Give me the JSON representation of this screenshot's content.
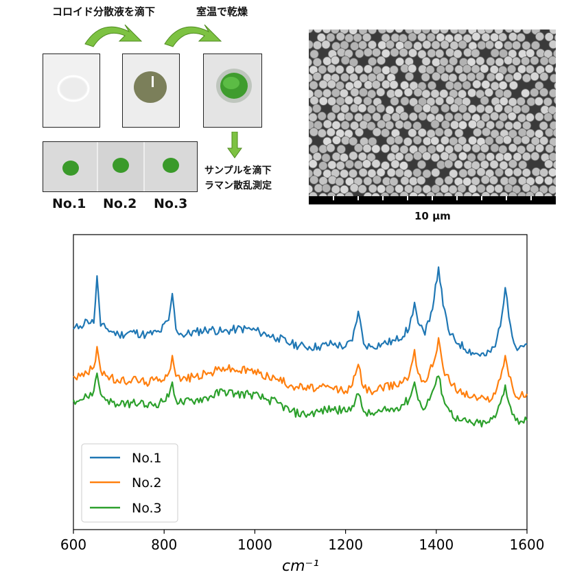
{
  "process": {
    "step1": "コロイド分散液を滴下",
    "step2": "室温で乾燥",
    "step3_line1": "サンプルを滴下",
    "step3_line2": "ラマン散乱測定"
  },
  "samples": [
    "No.1",
    "No.2",
    "No.3"
  ],
  "sem": {
    "scale_label": "10 μm"
  },
  "colors": {
    "arrow": "#7dc242",
    "no1": "#1f77b4",
    "no2": "#ff7f0e",
    "no3": "#2ca02c"
  },
  "chart_data": {
    "type": "line",
    "title": "",
    "xlabel": "cm⁻¹",
    "ylabel": "",
    "xlim": [
      600,
      1600
    ],
    "ylim": [
      0,
      1
    ],
    "xticks": [
      "600",
      "800",
      "1000",
      "1200",
      "1400",
      "1600"
    ],
    "legend": "lower-left",
    "series": [
      {
        "name": "No.1",
        "color": "#1f77b4",
        "x": [
          600,
          615,
          630,
          645,
          652,
          660,
          675,
          700,
          730,
          760,
          790,
          810,
          818,
          826,
          840,
          870,
          900,
          930,
          960,
          990,
          1010,
          1030,
          1050,
          1080,
          1110,
          1140,
          1170,
          1200,
          1215,
          1228,
          1240,
          1255,
          1280,
          1310,
          1340,
          1352,
          1360,
          1375,
          1395,
          1405,
          1415,
          1430,
          1450,
          1480,
          1510,
          1530,
          1545,
          1552,
          1560,
          1575,
          1600
        ],
        "y": [
          0.68,
          0.69,
          0.71,
          0.7,
          0.86,
          0.69,
          0.68,
          0.66,
          0.67,
          0.66,
          0.67,
          0.71,
          0.8,
          0.68,
          0.66,
          0.67,
          0.68,
          0.67,
          0.68,
          0.68,
          0.67,
          0.66,
          0.65,
          0.63,
          0.62,
          0.62,
          0.63,
          0.62,
          0.64,
          0.74,
          0.63,
          0.62,
          0.63,
          0.64,
          0.68,
          0.77,
          0.7,
          0.66,
          0.78,
          0.89,
          0.76,
          0.66,
          0.63,
          0.6,
          0.59,
          0.62,
          0.73,
          0.82,
          0.72,
          0.62,
          0.63
        ]
      },
      {
        "name": "No.2",
        "color": "#ff7f0e",
        "x": [
          600,
          615,
          630,
          645,
          652,
          660,
          675,
          700,
          730,
          760,
          790,
          810,
          818,
          826,
          840,
          870,
          900,
          930,
          960,
          990,
          1010,
          1030,
          1050,
          1080,
          1110,
          1140,
          1170,
          1200,
          1215,
          1228,
          1240,
          1255,
          1280,
          1310,
          1340,
          1352,
          1360,
          1375,
          1395,
          1405,
          1415,
          1430,
          1450,
          1480,
          1510,
          1530,
          1545,
          1552,
          1560,
          1575,
          1600
        ],
        "y": [
          0.52,
          0.52,
          0.53,
          0.55,
          0.62,
          0.54,
          0.52,
          0.5,
          0.51,
          0.5,
          0.51,
          0.53,
          0.59,
          0.52,
          0.51,
          0.52,
          0.53,
          0.55,
          0.54,
          0.54,
          0.53,
          0.52,
          0.51,
          0.49,
          0.48,
          0.48,
          0.48,
          0.47,
          0.49,
          0.56,
          0.48,
          0.47,
          0.48,
          0.49,
          0.52,
          0.61,
          0.53,
          0.5,
          0.57,
          0.65,
          0.55,
          0.5,
          0.47,
          0.45,
          0.44,
          0.46,
          0.54,
          0.59,
          0.52,
          0.45,
          0.46
        ]
      },
      {
        "name": "No.3",
        "color": "#2ca02c",
        "x": [
          600,
          615,
          630,
          645,
          652,
          660,
          675,
          700,
          730,
          760,
          790,
          810,
          818,
          826,
          840,
          870,
          900,
          930,
          960,
          990,
          1010,
          1030,
          1050,
          1080,
          1110,
          1140,
          1170,
          1200,
          1215,
          1228,
          1240,
          1255,
          1280,
          1310,
          1340,
          1352,
          1360,
          1375,
          1395,
          1405,
          1415,
          1430,
          1450,
          1480,
          1510,
          1530,
          1545,
          1552,
          1560,
          1575,
          1600
        ],
        "y": [
          0.44,
          0.44,
          0.45,
          0.47,
          0.53,
          0.46,
          0.44,
          0.42,
          0.43,
          0.42,
          0.43,
          0.45,
          0.5,
          0.44,
          0.43,
          0.44,
          0.45,
          0.47,
          0.46,
          0.46,
          0.45,
          0.44,
          0.43,
          0.4,
          0.39,
          0.4,
          0.41,
          0.4,
          0.42,
          0.46,
          0.4,
          0.39,
          0.4,
          0.41,
          0.44,
          0.5,
          0.44,
          0.41,
          0.48,
          0.52,
          0.45,
          0.4,
          0.37,
          0.36,
          0.36,
          0.38,
          0.45,
          0.49,
          0.43,
          0.37,
          0.37
        ]
      }
    ]
  }
}
